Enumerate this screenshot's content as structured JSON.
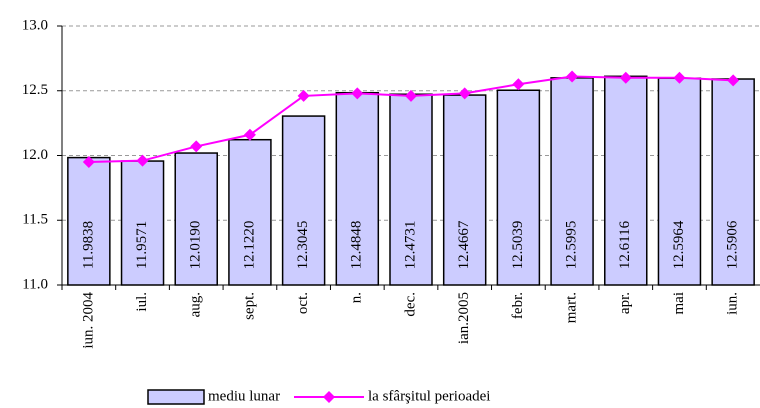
{
  "chart_data": {
    "type": "bar",
    "categories": [
      "iun. 2004",
      "iul.",
      "aug.",
      "sept.",
      "oct.",
      "n.",
      "dec.",
      "ian.2005",
      "febr.",
      "mart.",
      "apr.",
      "mai",
      "iun."
    ],
    "series": [
      {
        "name": "mediu lunar",
        "type": "bar",
        "color": "#ccccff",
        "values": [
          11.9838,
          11.9571,
          12.019,
          12.122,
          12.3045,
          12.4848,
          12.4731,
          12.4667,
          12.5039,
          12.5995,
          12.6116,
          12.5964,
          12.5906
        ],
        "value_labels": [
          "11.9838",
          "11.9571",
          "12.0190",
          "12.1220",
          "12.3045",
          "12.4848",
          "12.4731",
          "12.4667",
          "12.5039",
          "12.5995",
          "12.6116",
          "12.5964",
          "12.5906"
        ]
      },
      {
        "name": "la sfârşitul perioadei",
        "type": "line",
        "color": "#ff00ff",
        "values": [
          11.95,
          11.96,
          12.07,
          12.16,
          12.46,
          12.48,
          12.46,
          12.48,
          12.55,
          12.61,
          12.6,
          12.6,
          12.58
        ]
      }
    ],
    "ylim": [
      11.0,
      13.0
    ],
    "yticks": [
      {
        "value": 11.0,
        "label": "11.0"
      },
      11.5,
      {
        "value": 12.0,
        "label": "12.0"
      },
      12.5,
      {
        "value": 13.0,
        "label": "13.0"
      }
    ],
    "grid": true,
    "legend": "bottom"
  }
}
